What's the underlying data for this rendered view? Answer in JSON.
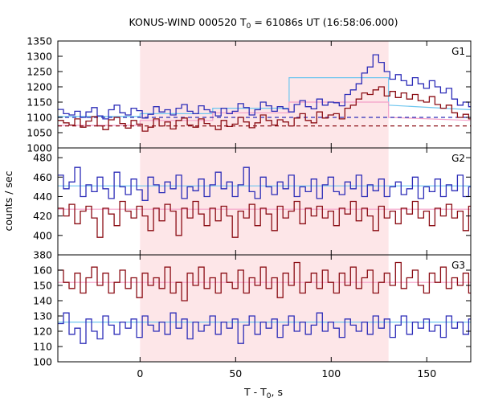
{
  "chart_data": {
    "type": "line",
    "title": "KONUS-WIND 000520 T",
    "title_sub": "0",
    "title_rest": " = 61086s UT (16:58:06.000)",
    "xlabel_main": "T - T",
    "xlabel_sub": "0",
    "xlabel_rest": ", s",
    "ylabel": "counts / sec",
    "xlim": [
      -43,
      173
    ],
    "xticks": [
      0,
      50,
      100,
      150
    ],
    "highlight_interval": [
      0,
      130
    ],
    "colors": {
      "blue": "#2d2db8",
      "red": "#8b0d14",
      "highlight": "#fde6e8",
      "light_blue": "#6ec6ef",
      "pink": "#f4a0c8"
    },
    "panels": [
      {
        "label": "G1",
        "ylim": [
          1000,
          1350
        ],
        "yticks": [
          1000,
          1050,
          1100,
          1150,
          1200,
          1250,
          1300,
          1350
        ],
        "bin_width": 2.944,
        "x_start": -43,
        "series": [
          {
            "color": "blue",
            "values": [
              1126,
              1112,
              1108,
              1120,
              1100,
              1118,
              1132,
              1105,
              1095,
              1125,
              1140,
              1115,
              1108,
              1130,
              1122,
              1098,
              1110,
              1135,
              1118,
              1125,
              1108,
              1130,
              1142,
              1120,
              1112,
              1138,
              1125,
              1118,
              1105,
              1130,
              1112,
              1120,
              1145,
              1132,
              1108,
              1125,
              1150,
              1138,
              1120,
              1135,
              1128,
              1118,
              1142,
              1155,
              1135,
              1128,
              1160,
              1140,
              1150,
              1148,
              1138,
              1175,
              1190,
              1210,
              1245,
              1265,
              1305,
              1280,
              1250,
              1225,
              1240,
              1220,
              1205,
              1230,
              1210,
              1195,
              1220,
              1200,
              1180,
              1195,
              1160,
              1140,
              1150,
              1135,
              1120,
              1115,
              1130,
              1110,
              1128,
              1115,
              1125,
              1105,
              1120,
              1110,
              1130,
              1118,
              1122,
              1115,
              1108,
              1125,
              1110,
              1118,
              1112,
              1120
            ]
          },
          {
            "color": "red",
            "values": [
              1090,
              1082,
              1075,
              1095,
              1068,
              1088,
              1102,
              1072,
              1060,
              1092,
              1100,
              1080,
              1065,
              1090,
              1078,
              1055,
              1068,
              1095,
              1072,
              1085,
              1062,
              1090,
              1098,
              1075,
              1068,
              1095,
              1080,
              1072,
              1060,
              1090,
              1070,
              1078,
              1100,
              1085,
              1066,
              1082,
              1108,
              1090,
              1075,
              1092,
              1085,
              1072,
              1098,
              1112,
              1090,
              1082,
              1118,
              1098,
              1108,
              1112,
              1095,
              1130,
              1140,
              1160,
              1180,
              1175,
              1190,
              1200,
              1170,
              1185,
              1165,
              1180,
              1160,
              1175,
              1155,
              1150,
              1168,
              1142,
              1130,
              1140,
              1115,
              1100,
              1110,
              1095,
              1085,
              1080,
              1090,
              1072,
              1085,
              1075,
              1082,
              1065,
              1078,
              1070,
              1085,
              1075,
              1080,
              1072,
              1065,
              1082,
              1070,
              1075,
              1068,
              1078
            ]
          }
        ],
        "overlays": [
          {
            "color": "light_blue",
            "style": "solid",
            "points": [
              [
                -43,
                1103
              ],
              [
                0,
                1103
              ],
              [
                0,
                1112
              ],
              [
                38,
                1112
              ],
              [
                38,
                1130
              ],
              [
                78,
                1130
              ],
              [
                78,
                1180
              ],
              [
                78,
                1230
              ],
              [
                130,
                1230
              ],
              [
                130,
                1140
              ],
              [
                173,
                1125
              ]
            ]
          },
          {
            "color": "pink",
            "style": "solid",
            "points": [
              [
                -43,
                1074
              ],
              [
                0,
                1074
              ],
              [
                0,
                1090
              ],
              [
                38,
                1090
              ],
              [
                38,
                1115
              ],
              [
                78,
                1115
              ],
              [
                78,
                1150
              ],
              [
                130,
                1150
              ],
              [
                130,
                1100
              ],
              [
                173,
                1090
              ]
            ]
          },
          {
            "color": "blue",
            "style": "dashed",
            "points": [
              [
                -43,
                1100
              ],
              [
                173,
                1100
              ]
            ]
          },
          {
            "color": "red",
            "style": "dashed",
            "points": [
              [
                -43,
                1072
              ],
              [
                173,
                1072
              ]
            ]
          }
        ]
      },
      {
        "label": "G2",
        "ylim": [
          380,
          490
        ],
        "yticks": [
          380,
          400,
          420,
          440,
          460,
          480
        ],
        "bin_width": 2.944,
        "x_start": -43,
        "series": [
          {
            "color": "blue",
            "values": [
              462,
              448,
              455,
              470,
              440,
              452,
              445,
              460,
              448,
              438,
              465,
              450,
              442,
              458,
              447,
              436,
              460,
              452,
              444,
              455,
              448,
              462,
              438,
              450,
              446,
              458,
              440,
              452,
              465,
              448,
              455,
              440,
              452,
              470,
              445,
              438,
              460,
              450,
              442,
              455,
              448,
              462,
              440,
              450,
              445,
              458,
              438,
              452,
              460,
              445,
              442,
              455,
              448,
              462,
              440,
              452,
              446,
              458,
              440,
              450,
              455,
              442,
              448,
              460,
              438,
              450,
              445,
              458,
              440,
              452,
              446,
              462,
              440,
              450,
              455,
              448,
              442,
              458,
              480,
              465,
              450,
              440,
              455,
              445,
              460,
              438,
              452,
              448,
              462,
              440,
              450,
              455,
              465,
              445
            ]
          },
          {
            "color": "red",
            "values": [
              428,
              420,
              432,
              412,
              425,
              430,
              418,
              398,
              428,
              422,
              410,
              435,
              425,
              418,
              430,
              420,
              405,
              428,
              415,
              432,
              425,
              400,
              428,
              418,
              435,
              422,
              410,
              428,
              415,
              430,
              420,
              398,
              425,
              418,
              432,
              410,
              428,
              422,
              405,
              430,
              418,
              425,
              435,
              412,
              428,
              420,
              430,
              418,
              425,
              410,
              428,
              422,
              435,
              415,
              428,
              420,
              405,
              430,
              418,
              425,
              412,
              428,
              422,
              435,
              418,
              425,
              410,
              428,
              420,
              432,
              418,
              425,
              405,
              430,
              420,
              428,
              415,
              432,
              425,
              418,
              430,
              410,
              428,
              422,
              418,
              430,
              425,
              412,
              428,
              420,
              432,
              418,
              425,
              428
            ]
          }
        ],
        "overlays": [
          {
            "color": "light_blue",
            "style": "solid",
            "points": [
              [
                -43,
                451
              ],
              [
                173,
                451
              ]
            ]
          },
          {
            "color": "pink",
            "style": "solid",
            "points": [
              [
                -43,
                427
              ],
              [
                173,
                427
              ]
            ]
          }
        ]
      },
      {
        "label": "G3",
        "ylim": [
          100,
          170
        ],
        "yticks": [
          100,
          110,
          120,
          130,
          140,
          150,
          160
        ],
        "bin_width": 2.944,
        "x_start": -43,
        "series": [
          {
            "color": "blue",
            "values": [
              125,
              132,
              118,
              122,
              112,
              128,
              120,
              115,
              130,
              124,
              118,
              126,
              122,
              128,
              116,
              130,
              124,
              120,
              126,
              118,
              132,
              122,
              128,
              115,
              126,
              120,
              124,
              130,
              118,
              126,
              122,
              128,
              112,
              124,
              130,
              118,
              126,
              122,
              128,
              116,
              124,
              130,
              120,
              126,
              118,
              124,
              132,
              120,
              126,
              122,
              116,
              128,
              124,
              120,
              126,
              118,
              130,
              122,
              128,
              116,
              124,
              130,
              118,
              126,
              122,
              128,
              120,
              124,
              116,
              130,
              122,
              126,
              118,
              128,
              124,
              120,
              126,
              132,
              118,
              124,
              128,
              110,
              126,
              122,
              116,
              130,
              124,
              120,
              126,
              118,
              128,
              122,
              124,
              126
            ]
          },
          {
            "color": "red",
            "values": [
              160,
              152,
              148,
              158,
              145,
              155,
              162,
              150,
              158,
              145,
              152,
              160,
              148,
              155,
              142,
              158,
              150,
              155,
              148,
              162,
              145,
              152,
              140,
              158,
              150,
              162,
              148,
              155,
              145,
              158,
              152,
              148,
              160,
              145,
              155,
              150,
              162,
              148,
              155,
              142,
              158,
              150,
              165,
              145,
              152,
              158,
              148,
              160,
              152,
              145,
              158,
              150,
              162,
              148,
              155,
              160,
              145,
              152,
              158,
              150,
              165,
              148,
              155,
              160,
              150,
              145,
              158,
              152,
              162,
              148,
              155,
              150,
              158,
              145,
              160,
              152,
              148,
              155,
              162,
              150,
              145,
              158,
              152,
              140,
              155,
              148,
              160,
              152,
              145,
              158,
              150,
              155,
              148,
              152
            ]
          }
        ],
        "overlays": [
          {
            "color": "light_blue",
            "style": "solid",
            "points": [
              [
                -43,
                126
              ],
              [
                173,
                126
              ]
            ]
          },
          {
            "color": "pink",
            "style": "solid",
            "points": [
              [
                -43,
                152
              ],
              [
                173,
                152
              ]
            ]
          }
        ]
      }
    ]
  }
}
